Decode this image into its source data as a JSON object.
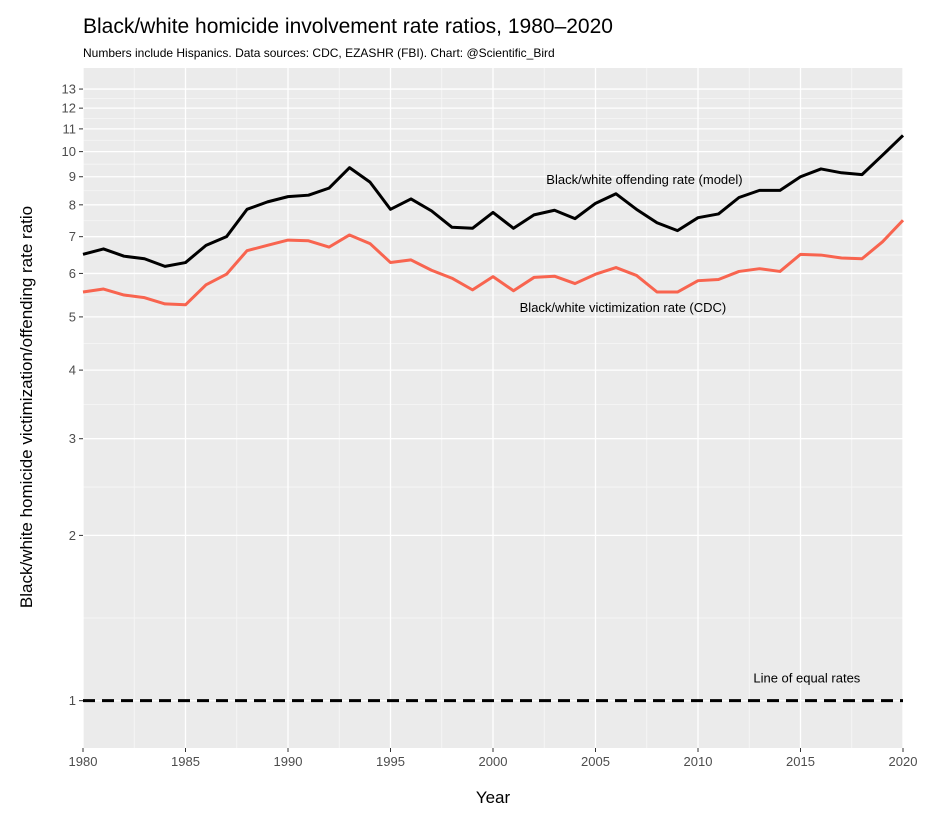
{
  "chart_data": {
    "type": "line",
    "title": "Black/white homicide involvement rate ratios, 1980–2020",
    "subtitle": "Numbers include Hispanics. Data sources: CDC, EZASHR (FBI). Chart: @Scientific_Bird",
    "xlabel": "Year",
    "ylabel": "Black/white homicide victimization/offending rate ratio",
    "y_scale": "log",
    "xlim": [
      1980,
      2020
    ],
    "ylim": [
      0.82,
      14.2
    ],
    "x_ticks": [
      1980,
      1985,
      1990,
      1995,
      2000,
      2005,
      2010,
      2015,
      2020
    ],
    "y_ticks": [
      1,
      2,
      3,
      4,
      5,
      6,
      7,
      8,
      9,
      10,
      11,
      12,
      13
    ],
    "x": [
      1980,
      1981,
      1982,
      1983,
      1984,
      1985,
      1986,
      1987,
      1988,
      1989,
      1990,
      1991,
      1992,
      1993,
      1994,
      1995,
      1996,
      1997,
      1998,
      1999,
      2000,
      2001,
      2002,
      2003,
      2004,
      2005,
      2006,
      2007,
      2008,
      2009,
      2010,
      2011,
      2012,
      2013,
      2014,
      2015,
      2016,
      2017,
      2018,
      2019,
      2020
    ],
    "series": [
      {
        "name": "Black/white offending rate (model)",
        "color": "#000000",
        "values": [
          6.5,
          6.65,
          6.45,
          6.38,
          6.18,
          6.28,
          6.75,
          7.0,
          7.85,
          8.1,
          8.28,
          8.33,
          8.58,
          9.35,
          8.8,
          7.85,
          8.2,
          7.8,
          7.28,
          7.25,
          7.75,
          7.25,
          7.67,
          7.82,
          7.55,
          8.05,
          8.38,
          7.85,
          7.42,
          7.18,
          7.58,
          7.7,
          8.25,
          8.5,
          8.5,
          9.0,
          9.3,
          9.15,
          9.08,
          9.85,
          10.7
        ]
      },
      {
        "name": "Black/white victimization rate (CDC)",
        "color": "#f8644f",
        "values": [
          5.55,
          5.62,
          5.48,
          5.42,
          5.28,
          5.26,
          5.72,
          5.98,
          6.6,
          6.75,
          6.9,
          6.88,
          6.7,
          7.05,
          6.8,
          6.28,
          6.35,
          6.08,
          5.88,
          5.6,
          5.92,
          5.58,
          5.9,
          5.93,
          5.75,
          5.98,
          6.15,
          5.95,
          5.55,
          5.55,
          5.82,
          5.85,
          6.05,
          6.12,
          6.05,
          6.5,
          6.48,
          6.4,
          6.38,
          6.85,
          7.5
        ]
      }
    ],
    "reference_line": {
      "label": "Line of equal rates",
      "value": 1,
      "style": "dashed",
      "color": "#000000"
    },
    "annotations": [
      {
        "text": "Black/white offending rate (model)",
        "x": 2002.6,
        "y": 8.9
      },
      {
        "text": "Black/white victimization rate (CDC)",
        "x": 2001.3,
        "y": 5.2
      },
      {
        "text": "Line of equal rates",
        "x": 2012.7,
        "y": 1.1
      }
    ],
    "grid": true,
    "legend": "none"
  }
}
